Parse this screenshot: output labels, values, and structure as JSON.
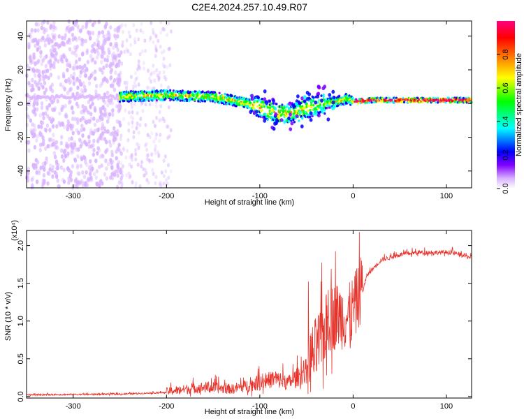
{
  "title": "C2E4.2024.257.10.49.R07",
  "chart_data": [
    {
      "type": "heatmap",
      "name": "spectrogram",
      "xlabel": "Height of straight line (km)",
      "ylabel": "Frequency (Hz)",
      "xlim": [
        -350,
        127
      ],
      "ylim": [
        -50,
        49
      ],
      "xticks": [
        -300,
        -200,
        -100,
        0,
        100
      ],
      "yticks": [
        -40,
        -20,
        0,
        20,
        40
      ],
      "colorbar": {
        "label": "Normalized spectral amplitude",
        "range": [
          0,
          1
        ],
        "ticks": [
          0.0,
          0.2,
          0.4,
          0.6,
          0.8
        ],
        "colormap": [
          "#ffffff",
          "#d9b3ff",
          "#8000ff",
          "#0000ff",
          "#00ffff",
          "#00ff00",
          "#ffff00",
          "#ff8000",
          "#ff0000",
          "#ff0080"
        ]
      },
      "ridge_track": [
        {
          "x": -250,
          "y": 4
        },
        {
          "x": -200,
          "y": 5
        },
        {
          "x": -150,
          "y": 4
        },
        {
          "x": -120,
          "y": 1
        },
        {
          "x": -100,
          "y": -2
        },
        {
          "x": -80,
          "y": -6
        },
        {
          "x": -60,
          "y": -5
        },
        {
          "x": -40,
          "y": -1
        },
        {
          "x": -20,
          "y": 1
        },
        {
          "x": -5,
          "y": 3
        },
        {
          "x": 0,
          "y": 1
        },
        {
          "x": 20,
          "y": 2
        },
        {
          "x": 60,
          "y": 2
        },
        {
          "x": 127,
          "y": 2
        }
      ]
    },
    {
      "type": "line",
      "name": "snr",
      "xlabel": "Height of straight line (km)",
      "ylabel": "SNR (10 * v/v)",
      "scale_label": "(x10⁴)",
      "xlim": [
        -350,
        127
      ],
      "ylim": [
        -0.02,
        2.2
      ],
      "xticks": [
        -300,
        -200,
        -100,
        0,
        100
      ],
      "yticks": [
        0.0,
        0.5,
        1.0,
        1.5,
        2.0
      ],
      "ytick_labels": [
        "0.0",
        "0.5",
        "1.0",
        "1.5",
        "2.0"
      ],
      "color": "#e8332a",
      "baseline_points": [
        {
          "x": -350,
          "y": 0.02
        },
        {
          "x": -250,
          "y": 0.03
        },
        {
          "x": -200,
          "y": 0.05
        },
        {
          "x": -160,
          "y": 0.1
        },
        {
          "x": -130,
          "y": 0.08
        },
        {
          "x": -100,
          "y": 0.15
        },
        {
          "x": -85,
          "y": 0.2
        },
        {
          "x": -70,
          "y": 0.15
        },
        {
          "x": -55,
          "y": 0.25
        },
        {
          "x": -45,
          "y": 0.35
        },
        {
          "x": -35,
          "y": 0.6
        },
        {
          "x": -25,
          "y": 0.9
        },
        {
          "x": -15,
          "y": 0.95
        },
        {
          "x": -5,
          "y": 0.9
        },
        {
          "x": 5,
          "y": 1.15
        },
        {
          "x": 15,
          "y": 1.6
        },
        {
          "x": 30,
          "y": 1.8
        },
        {
          "x": 50,
          "y": 1.87
        },
        {
          "x": 70,
          "y": 1.9
        },
        {
          "x": 90,
          "y": 1.9
        },
        {
          "x": 105,
          "y": 1.9
        },
        {
          "x": 127,
          "y": 1.83
        }
      ]
    }
  ]
}
